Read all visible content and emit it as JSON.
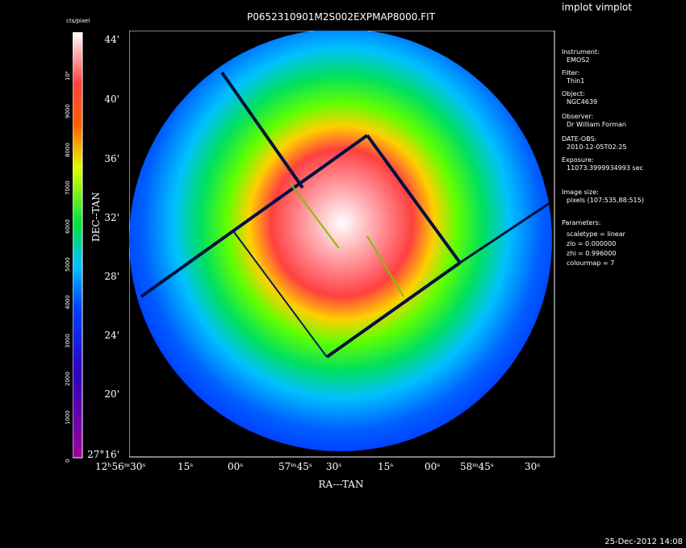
{
  "app_title": "implot vimplot",
  "image_title": "P0652310901M2S002EXPMAP8000.FIT",
  "timestamp": "25-Dec-2012 14:08",
  "colorbar": {
    "unit_label": "cts/pixel",
    "ticks": [
      "0",
      "1000",
      "2000",
      "3000",
      "4000",
      "5000",
      "6000",
      "7000",
      "8000",
      "9000",
      "10⁴"
    ]
  },
  "axes": {
    "x_label": "RA---TAN",
    "y_label": "DEC--TAN",
    "y_ticks": [
      "27°16'",
      "20'",
      "24'",
      "28'",
      "32'",
      "36'",
      "40'",
      "44'"
    ],
    "x_ticks": [
      "12ʰ56ᵐ30ˢ",
      "15ˢ",
      "00ˢ",
      "57ᵐ45ˢ",
      "30ˢ",
      "15ˢ",
      "00ˢ",
      "58ᵐ45ˢ",
      "30ˢ"
    ]
  },
  "info": {
    "instrument_label": "Instrument:",
    "instrument": "EMOS2",
    "filter_label": "Filter:",
    "filter": "Thin1",
    "object_label": "Object:",
    "object": "NGC4639",
    "observer_label": "Observer:",
    "observer": "Dr William Forman",
    "date_label": "DATE-OBS:",
    "date": "2010-12-05T02:25",
    "exposure_label": "Exposure:",
    "exposure": "11073.3999934993 sec",
    "size_label": "Image size:",
    "size": "pixels (107:535,88:515)",
    "params_label": "Parameters:",
    "scaletype": "scaletype = linear",
    "zlo": "zlo = 0.000000",
    "zhi": "zhi = 0.996000",
    "colourmap": "colourmap =   7"
  }
}
